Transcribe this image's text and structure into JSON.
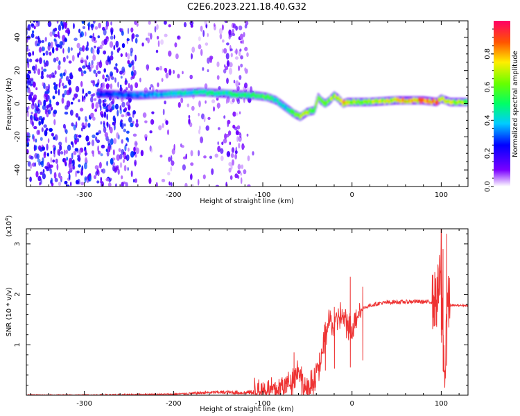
{
  "title": "C2E6.2023.221.18.40.G32",
  "chart_data": [
    {
      "type": "heatmap",
      "name": "spectrogram",
      "xlabel": "Height of straight line (km)",
      "ylabel": "Frequency (Hz)",
      "xlim": [
        -365,
        130
      ],
      "ylim": [
        -50,
        50
      ],
      "xticks": [
        -300,
        -200,
        -100,
        0,
        100
      ],
      "yticks": [
        -40,
        -20,
        0,
        20,
        40
      ],
      "colorbar": {
        "label": "Normalized spectral amplitude",
        "range": [
          0,
          1
        ],
        "ticks": [
          "0.0",
          "0.2",
          "0.4",
          "0.6",
          "0.8"
        ],
        "tick_values": [
          0,
          0.2,
          0.4,
          0.6,
          0.8
        ],
        "colormap": "rainbow"
      },
      "ridge": {
        "description": "dominant Doppler frequency trace",
        "x": [
          -280,
          -240,
          -200,
          -170,
          -140,
          -110,
          -95,
          -85,
          -75,
          -65,
          -58,
          -50,
          -42,
          -38,
          -35,
          -30,
          -25,
          -20,
          -15,
          -10,
          -5,
          0,
          20,
          50,
          80,
          95,
          100,
          110,
          130
        ],
        "y": [
          6,
          5,
          6,
          7,
          6,
          5,
          4,
          2,
          -2,
          -6,
          -8,
          -5,
          -4,
          4,
          2,
          0,
          2,
          5,
          3,
          0,
          1,
          1,
          1,
          2,
          2,
          1,
          3,
          1,
          1
        ],
        "amplitude": [
          0.3,
          0.35,
          0.45,
          0.5,
          0.5,
          0.55,
          0.6,
          0.5,
          0.45,
          0.6,
          0.8,
          0.7,
          0.6,
          0.7,
          0.6,
          0.65,
          0.7,
          0.75,
          0.7,
          0.85,
          0.75,
          0.7,
          0.7,
          0.8,
          0.9,
          0.9,
          0.85,
          0.75,
          0.7
        ]
      },
      "noise_region": {
        "description": "broadband noise with low SNR",
        "x_range": [
          -365,
          -110
        ],
        "amplitude_range": [
          0.05,
          0.3
        ]
      }
    },
    {
      "type": "line",
      "name": "snr",
      "xlabel": "Height of straight line (km)",
      "ylabel": "SNR (10 * v/v)",
      "scale_label_prefix": "(x10",
      "scale_label_exponent": "4",
      "scale_label_suffix": ")",
      "xlim": [
        -365,
        130
      ],
      "ylim": [
        0,
        3.3
      ],
      "xticks": [
        -300,
        -200,
        -100,
        0,
        100
      ],
      "yticks": [
        1,
        2,
        3
      ],
      "color": "#ee3333",
      "series": [
        {
          "name": "SNR",
          "x": [
            -365,
            -300,
            -250,
            -200,
            -150,
            -120,
            -100,
            -85,
            -75,
            -65,
            -60,
            -55,
            -50,
            -45,
            -40,
            -35,
            -30,
            -25,
            -20,
            -15,
            -10,
            -5,
            0,
            5,
            10,
            20,
            30,
            40,
            50,
            60,
            70,
            80,
            90,
            95,
            98,
            100,
            102,
            104,
            106,
            108,
            110,
            120,
            130
          ],
          "y": [
            0.0,
            0.0,
            0.01,
            0.02,
            0.06,
            0.05,
            0.08,
            0.1,
            0.2,
            0.35,
            0.55,
            0.2,
            0.05,
            0.2,
            0.5,
            0.6,
            1.2,
            1.5,
            1.3,
            1.6,
            1.5,
            1.4,
            1.3,
            1.6,
            1.7,
            1.78,
            1.82,
            1.84,
            1.85,
            1.85,
            1.86,
            1.85,
            1.85,
            1.9,
            2.2,
            2.5,
            1.2,
            0.05,
            1.8,
            1.78,
            1.78,
            1.78,
            1.78
          ],
          "spikes": [
            {
              "x": -65,
              "y": 0.85
            },
            {
              "x": -30,
              "y": 1.45
            },
            {
              "x": -20,
              "y": 1.75
            },
            {
              "x": -2,
              "y": 2.35
            },
            {
              "x": 12,
              "y": 2.15
            },
            {
              "x": 100,
              "y": 3.35
            },
            {
              "x": 102,
              "y": 2.9
            },
            {
              "x": 106,
              "y": 3.2
            }
          ]
        }
      ]
    }
  ]
}
